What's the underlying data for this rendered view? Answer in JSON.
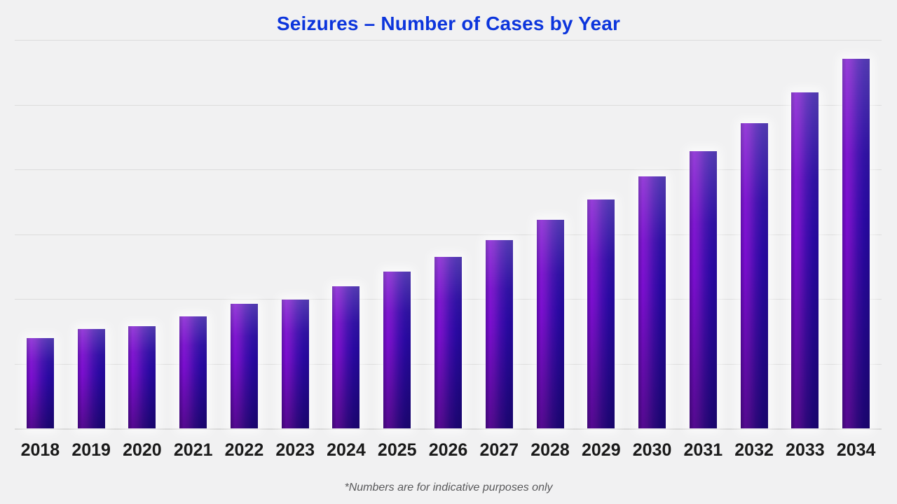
{
  "title": {
    "text": "Seizures – Number of Cases by Year",
    "color": "#0c35dc"
  },
  "footnote": {
    "text": "*Numbers are for indicative purposes only",
    "color": "#58585a"
  },
  "colors": {
    "page_background": "#f1f1f2",
    "gridline": "#dcdcdc",
    "baseline": "#d9d9d9",
    "bar_highlight_violet": "#7c0ed0",
    "bar_left_edge": "#5a0aa6",
    "bar_right_indigo": "#230896",
    "bar_bottom_shade": "#1a0a7e",
    "x_label_color": "#1a1a1a"
  },
  "chart_data": {
    "type": "bar",
    "title": "Seizures – Number of Cases by Year",
    "categories": [
      "2018",
      "2019",
      "2020",
      "2021",
      "2022",
      "2023",
      "2024",
      "2025",
      "2026",
      "2027",
      "2028",
      "2029",
      "2030",
      "2031",
      "2032",
      "2033",
      "2034"
    ],
    "values": [
      139,
      153,
      158,
      173,
      192,
      199,
      219,
      242,
      265,
      291,
      322,
      353,
      389,
      428,
      471,
      519,
      571
    ],
    "xlabel": "",
    "ylabel": "",
    "ylim": [
      0,
      600
    ],
    "gridline_step": 100,
    "grid": true,
    "y_axis_labels_visible": false,
    "legend": "none",
    "bar_style": "vertical gradient-shaded bars, violet to indigo, white glow",
    "annotations": [
      "*Numbers are for indicative purposes only"
    ]
  }
}
